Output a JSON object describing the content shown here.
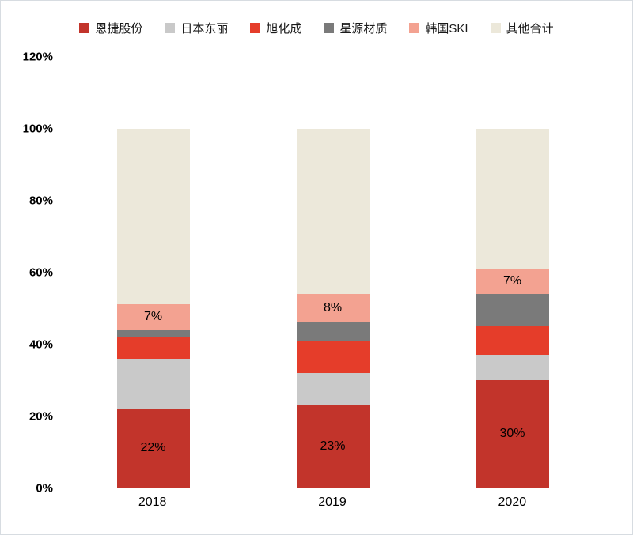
{
  "chart_data": {
    "type": "bar",
    "stacked": true,
    "title": "",
    "xlabel": "",
    "ylabel": "",
    "categories": [
      "2018",
      "2019",
      "2020"
    ],
    "series": [
      {
        "name": "恩捷股份",
        "color": "#c2342b",
        "values": [
          22,
          23,
          30
        ],
        "labels": [
          "22%",
          "23%",
          "30%"
        ]
      },
      {
        "name": "日本东丽",
        "color": "#c9c9c9",
        "values": [
          14,
          9,
          7
        ],
        "labels": null
      },
      {
        "name": "旭化成",
        "color": "#e53d2a",
        "values": [
          6,
          9,
          8
        ],
        "labels": null
      },
      {
        "name": "星源材质",
        "color": "#7a7a7a",
        "values": [
          2,
          5,
          9
        ],
        "labels": null
      },
      {
        "name": "韩国SKI",
        "color": "#f3a291",
        "values": [
          7,
          8,
          7
        ],
        "labels": [
          "7%",
          "8%",
          "7%"
        ]
      },
      {
        "name": "其他合计",
        "color": "#ece8da",
        "values": [
          49,
          46,
          39
        ],
        "labels": null
      }
    ],
    "ylim": [
      0,
      120
    ],
    "yticks": [
      "0%",
      "20%",
      "40%",
      "60%",
      "80%",
      "100%",
      "120%"
    ],
    "grid": false,
    "legend_position": "top",
    "axis_color": "#000000"
  }
}
